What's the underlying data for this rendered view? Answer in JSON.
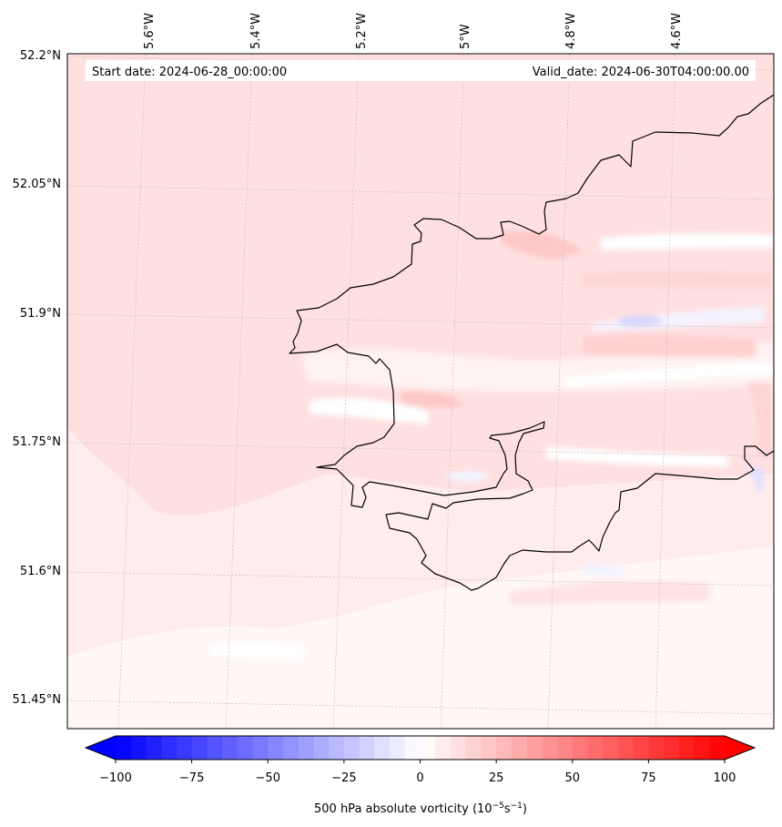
{
  "map": {
    "start_label": "Start date: 2024-06-28_00:00:00",
    "valid_label": "Valid_date: 2024-06-30T04:00:00.00",
    "lon_labels": [
      "5.6°W",
      "5.4°W",
      "5.2°W",
      "5°W",
      "4.8°W",
      "4.6°W"
    ],
    "lat_labels": [
      "52.2°N",
      "52.05°N",
      "51.9°N",
      "51.75°N",
      "51.6°N",
      "51.45°N"
    ],
    "gridlines": true
  },
  "colorbar": {
    "ticks": [
      "−100",
      "−75",
      "−50",
      "−25",
      "0",
      "25",
      "50",
      "75",
      "100"
    ],
    "label": "500 hPa absolute vorticity (10",
    "label_exp1": "−5",
    "label_mid": "s",
    "label_exp2": "−1",
    "label_end": ")",
    "min": -100,
    "max": 100,
    "step": 5,
    "colormap": "bwr",
    "extend": "both"
  },
  "colors": {
    "land_fill": "#ffdfdf",
    "coastline": "#000000",
    "negative": "#0000ff",
    "positive": "#ff0000"
  }
}
